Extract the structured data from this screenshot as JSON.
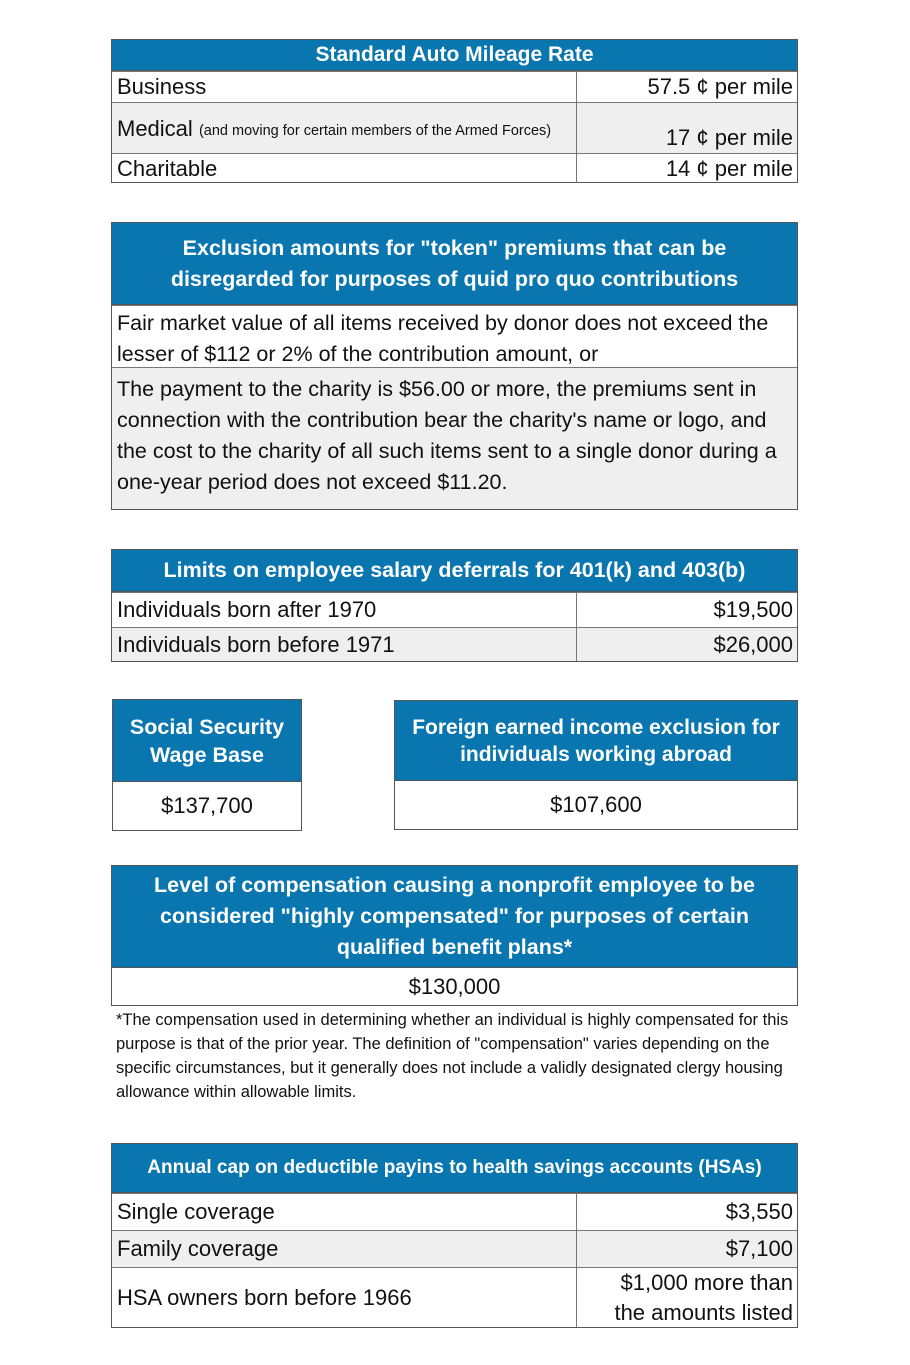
{
  "mileage": {
    "title": "Standard Auto Mileage Rate",
    "rows": [
      {
        "label": "Business",
        "note": "",
        "value": "57.5 ¢  per mile"
      },
      {
        "label": "Medical",
        "note": "(and moving for certain members of the Armed Forces)",
        "value": "17 ¢  per mile"
      },
      {
        "label": "Charitable",
        "note": "",
        "value": "14 ¢  per mile"
      }
    ]
  },
  "exclusion": {
    "title": "Exclusion amounts for \"token\" premiums that can be disregarded for purposes of quid pro quo contributions",
    "rows": [
      "Fair market value of all items received by donor does not exceed the lesser of $112 or 2% of the contribution amount, or",
      "The payment to the charity is $56.00 or more, the premiums sent in connection with the contribution bear the charity's name or logo, and the cost to the charity of all such items sent to a single donor during a one-year period does not exceed $11.20."
    ]
  },
  "deferrals": {
    "title": "Limits on employee salary deferrals for 401(k) and 403(b)",
    "rows": [
      {
        "label": "Individuals born after 1970",
        "value": "$19,500"
      },
      {
        "label": "Individuals born before 1971",
        "value": "$26,000"
      }
    ]
  },
  "social_security": {
    "title": "Social Security Wage Base",
    "value": "$137,700"
  },
  "foreign": {
    "title": "Foreign earned income exclusion for individuals working abroad",
    "value": "$107,600"
  },
  "highly_comp": {
    "title": "Level of compensation causing a nonprofit employee to be considered \"highly compensated\" for purposes of certain qualified benefit plans*",
    "value": "$130,000",
    "footnote": "*The compensation used in determining whether an individual is highly compensated for this purpose is that of the prior year.  The definition of \"compensation\" varies depending on the specific circumstances, but it generally does not include a validly designated clergy housing allowance within allowable limits."
  },
  "hsa": {
    "title": "Annual cap on deductible payins to health savings accounts (HSAs)",
    "rows": [
      {
        "label": "Single coverage",
        "value": "$3,550"
      },
      {
        "label": "Family coverage",
        "value": "$7,100"
      },
      {
        "label": "HSA owners born before 1966",
        "value": "$1,000 more than the amounts listed"
      }
    ]
  },
  "colors": {
    "header": "#0a76b0",
    "alt_row": "#efefef"
  }
}
